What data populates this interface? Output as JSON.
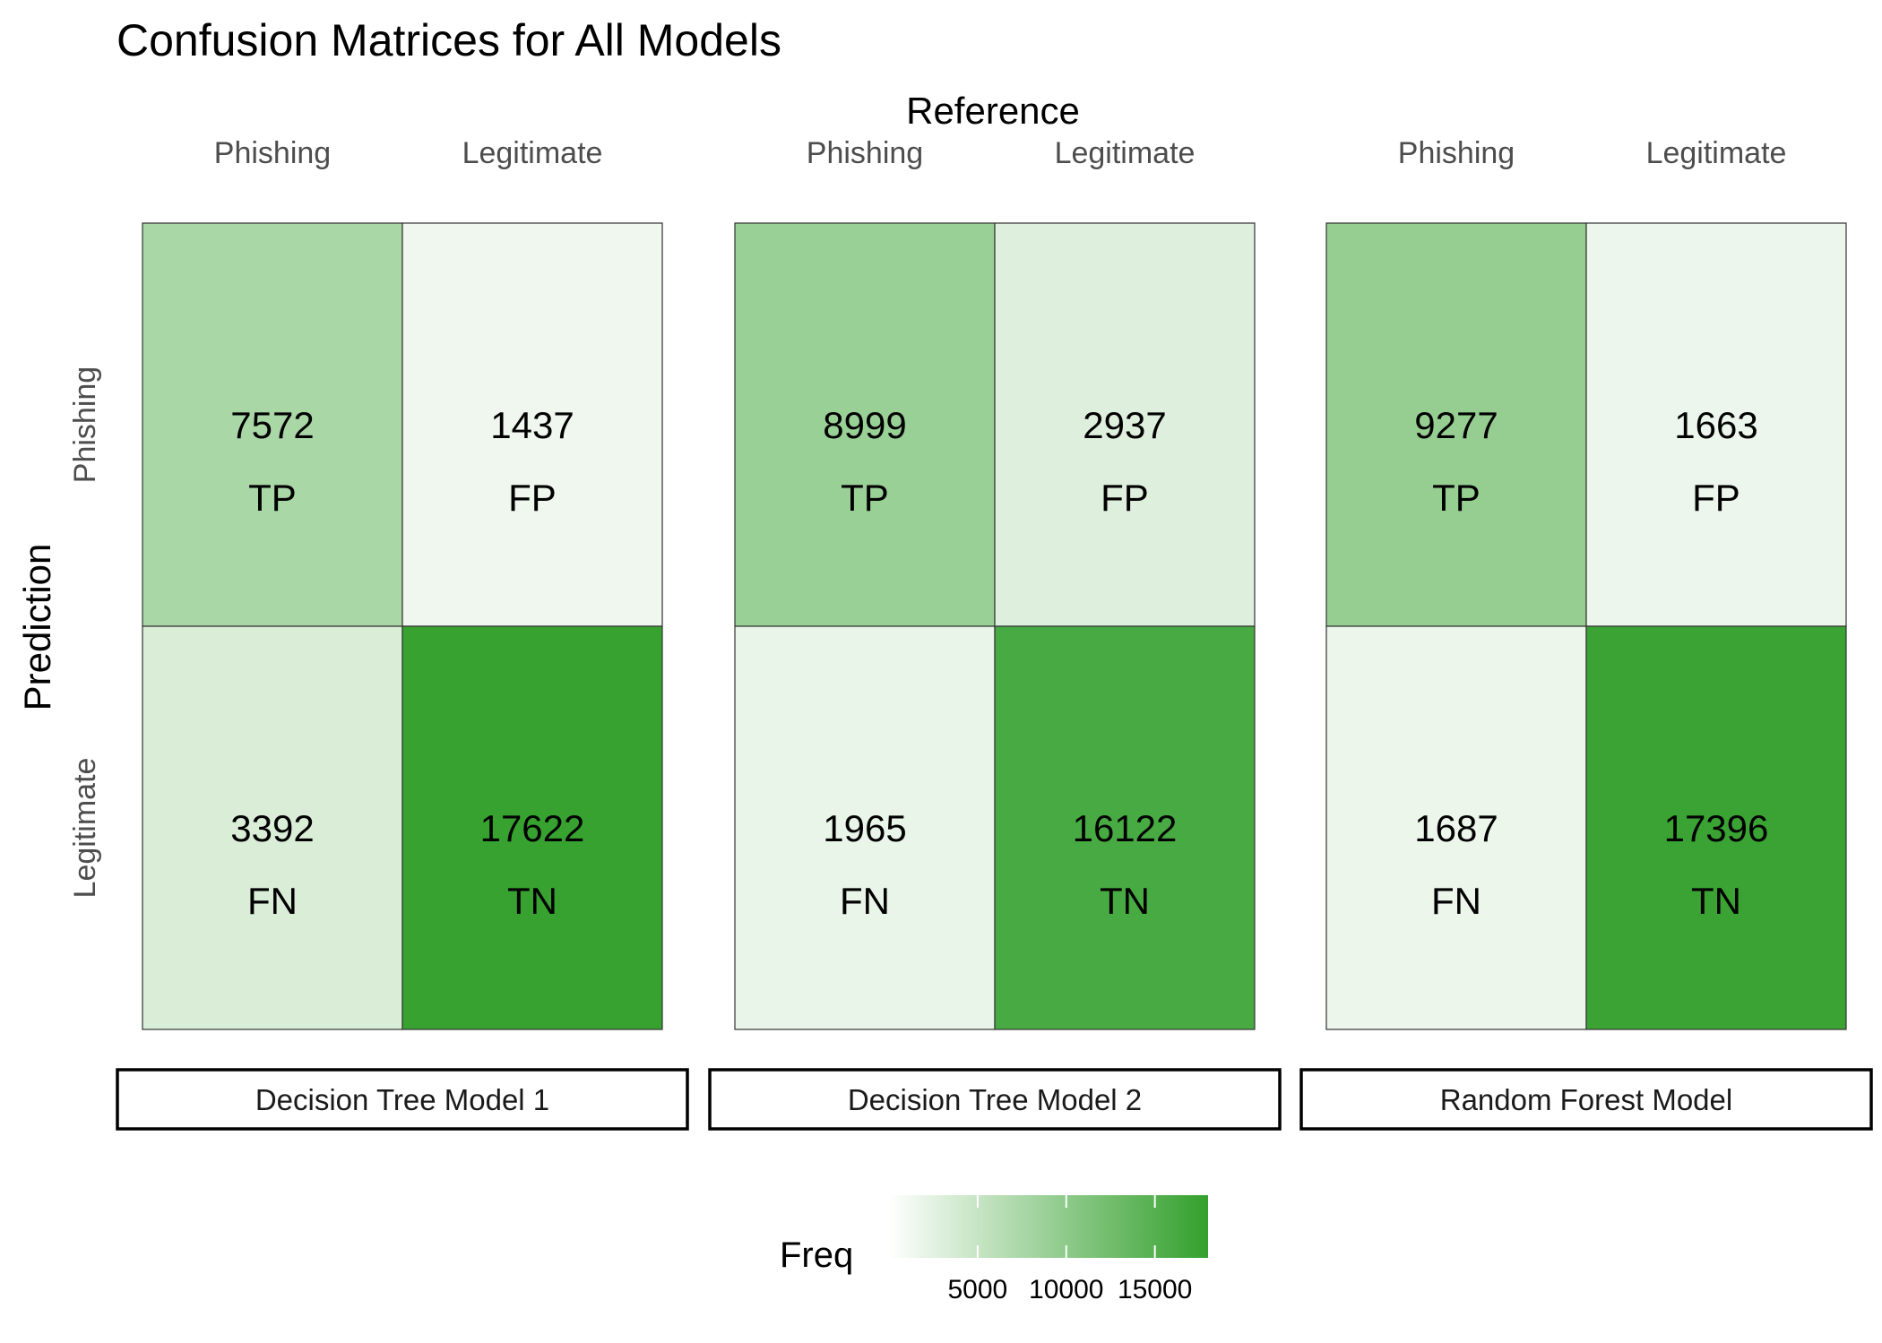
{
  "chart_data": {
    "type": "heatmap",
    "title": "Confusion Matrices for All Models",
    "xlabel": "Reference",
    "ylabel": "Prediction",
    "x_categories": [
      "Phishing",
      "Legitimate"
    ],
    "y_categories": [
      "Phishing",
      "Legitimate"
    ],
    "color_scale": {
      "low": "#ffffff",
      "high": "#33a02c",
      "range": [
        0,
        18000
      ]
    },
    "legend": {
      "title": "Freq",
      "ticks": [
        5000,
        10000,
        15000
      ],
      "tick_labels": [
        "5000",
        "10000",
        "15000"
      ],
      "range": [
        0,
        18000
      ],
      "placement": "bottom"
    },
    "panels": [
      {
        "name": "Decision Tree Model 1",
        "cells": [
          {
            "reference": "Phishing",
            "prediction": "Phishing",
            "freq": 7572,
            "label": "7572",
            "tag": "TP"
          },
          {
            "reference": "Legitimate",
            "prediction": "Phishing",
            "freq": 1437,
            "label": "1437",
            "tag": "FP"
          },
          {
            "reference": "Phishing",
            "prediction": "Legitimate",
            "freq": 3392,
            "label": "3392",
            "tag": "FN"
          },
          {
            "reference": "Legitimate",
            "prediction": "Legitimate",
            "freq": 17622,
            "label": "17622",
            "tag": "TN"
          }
        ]
      },
      {
        "name": "Decision Tree Model 2",
        "cells": [
          {
            "reference": "Phishing",
            "prediction": "Phishing",
            "freq": 8999,
            "label": "8999",
            "tag": "TP"
          },
          {
            "reference": "Legitimate",
            "prediction": "Phishing",
            "freq": 2937,
            "label": "2937",
            "tag": "FP"
          },
          {
            "reference": "Phishing",
            "prediction": "Legitimate",
            "freq": 1965,
            "label": "1965",
            "tag": "FN"
          },
          {
            "reference": "Legitimate",
            "prediction": "Legitimate",
            "freq": 16122,
            "label": "16122",
            "tag": "TN"
          }
        ]
      },
      {
        "name": "Random Forest Model",
        "cells": [
          {
            "reference": "Phishing",
            "prediction": "Phishing",
            "freq": 9277,
            "label": "9277",
            "tag": "TP"
          },
          {
            "reference": "Legitimate",
            "prediction": "Phishing",
            "freq": 1663,
            "label": "1663",
            "tag": "FP"
          },
          {
            "reference": "Phishing",
            "prediction": "Legitimate",
            "freq": 1687,
            "label": "1687",
            "tag": "FN"
          },
          {
            "reference": "Legitimate",
            "prediction": "Legitimate",
            "freq": 17396,
            "label": "17396",
            "tag": "TN"
          }
        ]
      }
    ]
  }
}
